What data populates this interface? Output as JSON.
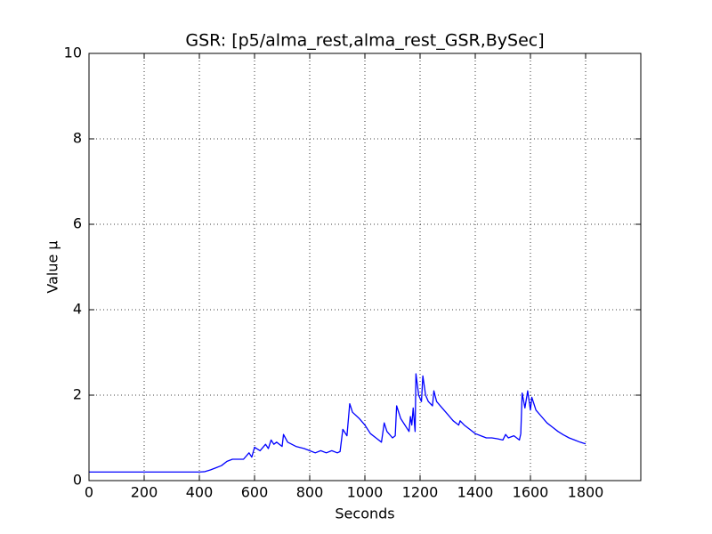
{
  "chart_data": {
    "type": "line",
    "title": "GSR: [p5/alma_rest,alma_rest_GSR,BySec]",
    "x_label": "Seconds",
    "y_label": "Value μ",
    "x": [
      0,
      100,
      200,
      300,
      400,
      420,
      440,
      460,
      480,
      500,
      520,
      560,
      580,
      590,
      600,
      620,
      640,
      650,
      660,
      670,
      680,
      700,
      705,
      720,
      750,
      780,
      800,
      820,
      840,
      860,
      880,
      900,
      910,
      920,
      935,
      945,
      955,
      980,
      1000,
      1020,
      1040,
      1060,
      1070,
      1080,
      1100,
      1110,
      1115,
      1130,
      1150,
      1160,
      1165,
      1170,
      1175,
      1182,
      1185,
      1195,
      1205,
      1210,
      1220,
      1230,
      1245,
      1250,
      1260,
      1280,
      1300,
      1320,
      1340,
      1345,
      1360,
      1380,
      1400,
      1420,
      1440,
      1460,
      1480,
      1500,
      1510,
      1520,
      1540,
      1560,
      1565,
      1570,
      1580,
      1590,
      1600,
      1605,
      1620,
      1640,
      1660,
      1680,
      1700,
      1720,
      1740,
      1760,
      1780,
      1800
    ],
    "values": [
      0.2,
      0.2,
      0.2,
      0.2,
      0.2,
      0.21,
      0.25,
      0.3,
      0.35,
      0.45,
      0.5,
      0.5,
      0.65,
      0.55,
      0.78,
      0.7,
      0.85,
      0.75,
      0.95,
      0.85,
      0.9,
      0.8,
      1.08,
      0.9,
      0.8,
      0.75,
      0.7,
      0.65,
      0.7,
      0.65,
      0.7,
      0.65,
      0.68,
      1.2,
      1.05,
      1.8,
      1.6,
      1.45,
      1.3,
      1.1,
      1.0,
      0.9,
      1.35,
      1.15,
      1.0,
      1.05,
      1.75,
      1.45,
      1.25,
      1.15,
      1.5,
      1.3,
      1.7,
      1.15,
      2.5,
      2.0,
      1.85,
      2.45,
      2.0,
      1.85,
      1.75,
      2.1,
      1.85,
      1.7,
      1.55,
      1.4,
      1.3,
      1.4,
      1.3,
      1.2,
      1.1,
      1.05,
      1.0,
      1.0,
      0.98,
      0.95,
      1.08,
      1.0,
      1.05,
      0.95,
      1.1,
      2.05,
      1.7,
      2.1,
      1.65,
      1.95,
      1.65,
      1.5,
      1.35,
      1.25,
      1.15,
      1.07,
      1.0,
      0.95,
      0.9,
      0.86
    ],
    "color": "#0000ff",
    "xlim": [
      0,
      2000
    ],
    "xticks": [
      0,
      200,
      400,
      600,
      800,
      1000,
      1200,
      1400,
      1600,
      1800
    ],
    "ylim": [
      0,
      10
    ],
    "yticks": [
      0,
      2,
      4,
      6,
      8,
      10
    ],
    "grid": true
  }
}
